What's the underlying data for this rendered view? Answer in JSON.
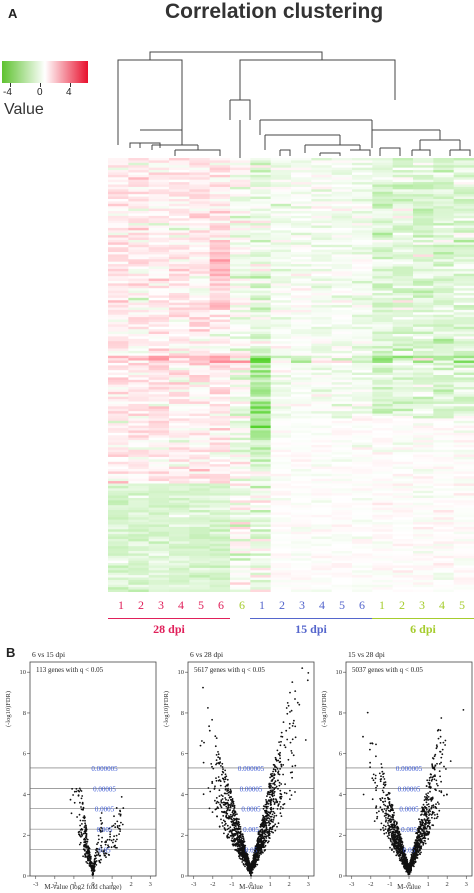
{
  "panel_a": {
    "letter": "A",
    "title": "Correlation clustering",
    "legend": {
      "label": "Value",
      "ticks": [
        "-4",
        "0",
        "4"
      ],
      "colors": [
        "#5ec22f",
        "#ffffff",
        "#e8102d"
      ]
    },
    "columns": [
      {
        "label": "1",
        "group": "28 dpi"
      },
      {
        "label": "2",
        "group": "28 dpi"
      },
      {
        "label": "3",
        "group": "28 dpi"
      },
      {
        "label": "4",
        "group": "28 dpi"
      },
      {
        "label": "5",
        "group": "28 dpi"
      },
      {
        "label": "6",
        "group": "28 dpi"
      },
      {
        "label": "6",
        "group": "6 dpi"
      },
      {
        "label": "1",
        "group": "15 dpi"
      },
      {
        "label": "2",
        "group": "15 dpi"
      },
      {
        "label": "3",
        "group": "15 dpi"
      },
      {
        "label": "4",
        "group": "15 dpi"
      },
      {
        "label": "5",
        "group": "15 dpi"
      },
      {
        "label": "6",
        "group": "15 dpi"
      },
      {
        "label": "1",
        "group": "6 dpi"
      },
      {
        "label": "2",
        "group": "6 dpi"
      },
      {
        "label": "3",
        "group": "6 dpi"
      },
      {
        "label": "4",
        "group": "6 dpi"
      },
      {
        "label": "5",
        "group": "6 dpi"
      }
    ],
    "groups": [
      {
        "name": "28 dpi",
        "color": "#e0205a"
      },
      {
        "name": "15 dpi",
        "color": "#5566cc"
      },
      {
        "name": "6 dpi",
        "color": "#a6cc2e"
      }
    ]
  },
  "panel_b": {
    "letter": "B",
    "plots": [
      {
        "title": "6 vs 15 dpi",
        "note": "113 genes with q < 0.05",
        "xlabel": "M-value   (log2 fold change)",
        "ylabel": "(-log10)FDR)",
        "yticks": [
          "0",
          "2",
          "4",
          "6",
          "8",
          "10"
        ],
        "xticks": [
          "-3",
          "-2",
          "-1",
          "0",
          "1",
          "2",
          "3"
        ],
        "threshold_labels": [
          "0.000005",
          "0.00005",
          "0.0005",
          "0.005",
          "0.05"
        ]
      },
      {
        "title": "6 vs 28 dpi",
        "note": "5617 genes with q < 0.05",
        "xlabel": "M-value",
        "ylabel": "(-log10)FDR)",
        "yticks": [
          "0",
          "2",
          "4",
          "6",
          "8",
          "10"
        ],
        "xticks": [
          "-3",
          "-2",
          "-1",
          "0",
          "1",
          "2",
          "3"
        ],
        "threshold_labels": [
          "0.000005",
          "0.00005",
          "0.0005",
          "0.005",
          "0.05"
        ]
      },
      {
        "title": "15 vs 28 dpi",
        "note": "5037 genes with q < 0.05",
        "xlabel": "M-value",
        "ylabel": "(-log10)FDR)",
        "yticks": [
          "0",
          "2",
          "4",
          "6",
          "8",
          "10"
        ],
        "xticks": [
          "-3",
          "-2",
          "-1",
          "0",
          "1",
          "2",
          "3"
        ],
        "threshold_labels": [
          "0.000005",
          "0.00005",
          "0.0005",
          "0.005",
          "0.05"
        ]
      }
    ]
  },
  "chart_data": [
    {
      "type": "heatmap",
      "title": "Correlation clustering",
      "color_scale": {
        "label": "Value",
        "min": -6,
        "max": 6,
        "ticks": [
          -4,
          0,
          4
        ]
      },
      "columns": [
        "1",
        "2",
        "3",
        "4",
        "5",
        "6",
        "6",
        "1",
        "2",
        "3",
        "4",
        "5",
        "6",
        "1",
        "2",
        "3",
        "4",
        "5"
      ],
      "column_groups": [
        "28 dpi",
        "28 dpi",
        "28 dpi",
        "28 dpi",
        "28 dpi",
        "28 dpi",
        "6 dpi",
        "15 dpi",
        "15 dpi",
        "15 dpi",
        "15 dpi",
        "15 dpi",
        "15 dpi",
        "6 dpi",
        "6 dpi",
        "6 dpi",
        "6 dpi",
        "6 dpi"
      ]
    },
    {
      "type": "scatter",
      "title": "6 vs 15 dpi",
      "xlabel": "M-value (log2 fold change)",
      "ylabel": "(-log10)FDR)",
      "xlim": [
        -3,
        3
      ],
      "ylim": [
        0,
        10
      ],
      "significant_genes": 113
    },
    {
      "type": "scatter",
      "title": "6 vs 28 dpi",
      "xlabel": "M-value",
      "ylabel": "(-log10)FDR)",
      "xlim": [
        -3,
        3
      ],
      "ylim": [
        0,
        10
      ],
      "significant_genes": 5617
    },
    {
      "type": "scatter",
      "title": "15 vs 28 dpi",
      "xlabel": "M-value",
      "ylabel": "(-log10)FDR)",
      "xlim": [
        -3,
        3
      ],
      "ylim": [
        0,
        10
      ],
      "significant_genes": 5037
    }
  ]
}
